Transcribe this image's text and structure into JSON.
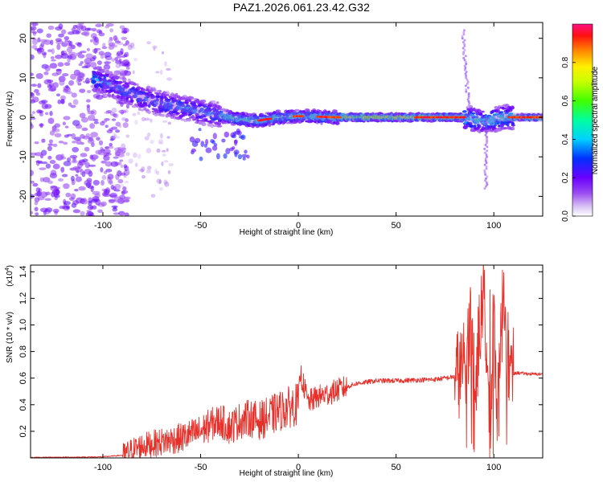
{
  "title": "PAZ1.2026.061.23.42.G32",
  "chart_data": [
    {
      "type": "heatmap",
      "name": "spectrogram",
      "xlabel": "Height of straight line (km)",
      "ylabel": "Frequency (Hz)",
      "xlim": [
        -137,
        125
      ],
      "ylim": [
        -25,
        24
      ],
      "xticks": [
        -100,
        -50,
        0,
        50,
        100
      ],
      "yticks": [
        -20,
        -10,
        0,
        10,
        20
      ],
      "xtick_labels": [
        "-100",
        "-50",
        "0",
        "50",
        "100"
      ],
      "ytick_labels": [
        "-20",
        "-10",
        "0",
        "10",
        "20"
      ],
      "colorbar": {
        "label": "Normalized spectral amplitude",
        "range": [
          0,
          1
        ],
        "ticks": [
          0.0,
          0.2,
          0.4,
          0.6,
          0.8
        ],
        "tick_labels": [
          "0.0",
          "0.2",
          "0.4",
          "0.6",
          "0.8"
        ]
      },
      "ridge_frequency_hz": [
        {
          "x": -137,
          "f": 14
        },
        {
          "x": -100,
          "f": 9
        },
        {
          "x": -90,
          "f": 7
        },
        {
          "x": -80,
          "f": 5
        },
        {
          "x": -70,
          "f": 3.5
        },
        {
          "x": -60,
          "f": 2.5
        },
        {
          "x": -50,
          "f": 1.5
        },
        {
          "x": -40,
          "f": 0.5
        },
        {
          "x": -30,
          "f": -0.5
        },
        {
          "x": -20,
          "f": -0.8
        },
        {
          "x": -10,
          "f": 0
        },
        {
          "x": 0,
          "f": 0.3
        },
        {
          "x": 20,
          "f": 0
        },
        {
          "x": 60,
          "f": 0
        },
        {
          "x": 85,
          "f": 0
        },
        {
          "x": 95,
          "f": -1
        },
        {
          "x": 105,
          "f": 0
        },
        {
          "x": 125,
          "f": 0
        }
      ]
    },
    {
      "type": "line",
      "name": "snr",
      "xlabel": "Height of straight line (km)",
      "ylabel": "SNR (10 * v/v)",
      "scale_label": "(x10",
      "scale_exponent": "4",
      "xlim": [
        -137,
        125
      ],
      "ylim": [
        0,
        14500
      ],
      "xticks": [
        -100,
        -50,
        0,
        50,
        100
      ],
      "yticks": [
        2000,
        4000,
        6000,
        8000,
        10000,
        12000,
        14000
      ],
      "xtick_labels": [
        "-100",
        "-50",
        "0",
        "50",
        "100"
      ],
      "ytick_labels": [
        "0.2",
        "0.4",
        "0.6",
        "0.8",
        "1.0",
        "1.2",
        "1.4"
      ],
      "color": "#e8302a",
      "series": [
        {
          "name": "SNR",
          "x": [
            -137,
            -120,
            -110,
            -100,
            -90,
            -85,
            -80,
            -70,
            -60,
            -50,
            -45,
            -40,
            -35,
            -30,
            -25,
            -20,
            -15,
            -10,
            -5,
            0,
            1,
            5,
            10,
            15,
            20,
            30,
            40,
            50,
            60,
            70,
            80,
            85,
            88,
            90,
            92,
            95,
            98,
            100,
            102,
            105,
            108,
            112,
            115,
            120,
            125
          ],
          "y": [
            30,
            50,
            60,
            80,
            200,
            600,
            900,
            1200,
            1500,
            2000,
            2500,
            2800,
            2300,
            2800,
            3000,
            2800,
            3100,
            3500,
            3800,
            4100,
            6400,
            4200,
            4600,
            4800,
            5100,
            5600,
            5800,
            5800,
            5850,
            5900,
            6100,
            6800,
            10200,
            3000,
            8500,
            12800,
            1200,
            10500,
            3000,
            13200,
            6200,
            6400,
            6350,
            6300,
            6300
          ]
        }
      ]
    }
  ]
}
